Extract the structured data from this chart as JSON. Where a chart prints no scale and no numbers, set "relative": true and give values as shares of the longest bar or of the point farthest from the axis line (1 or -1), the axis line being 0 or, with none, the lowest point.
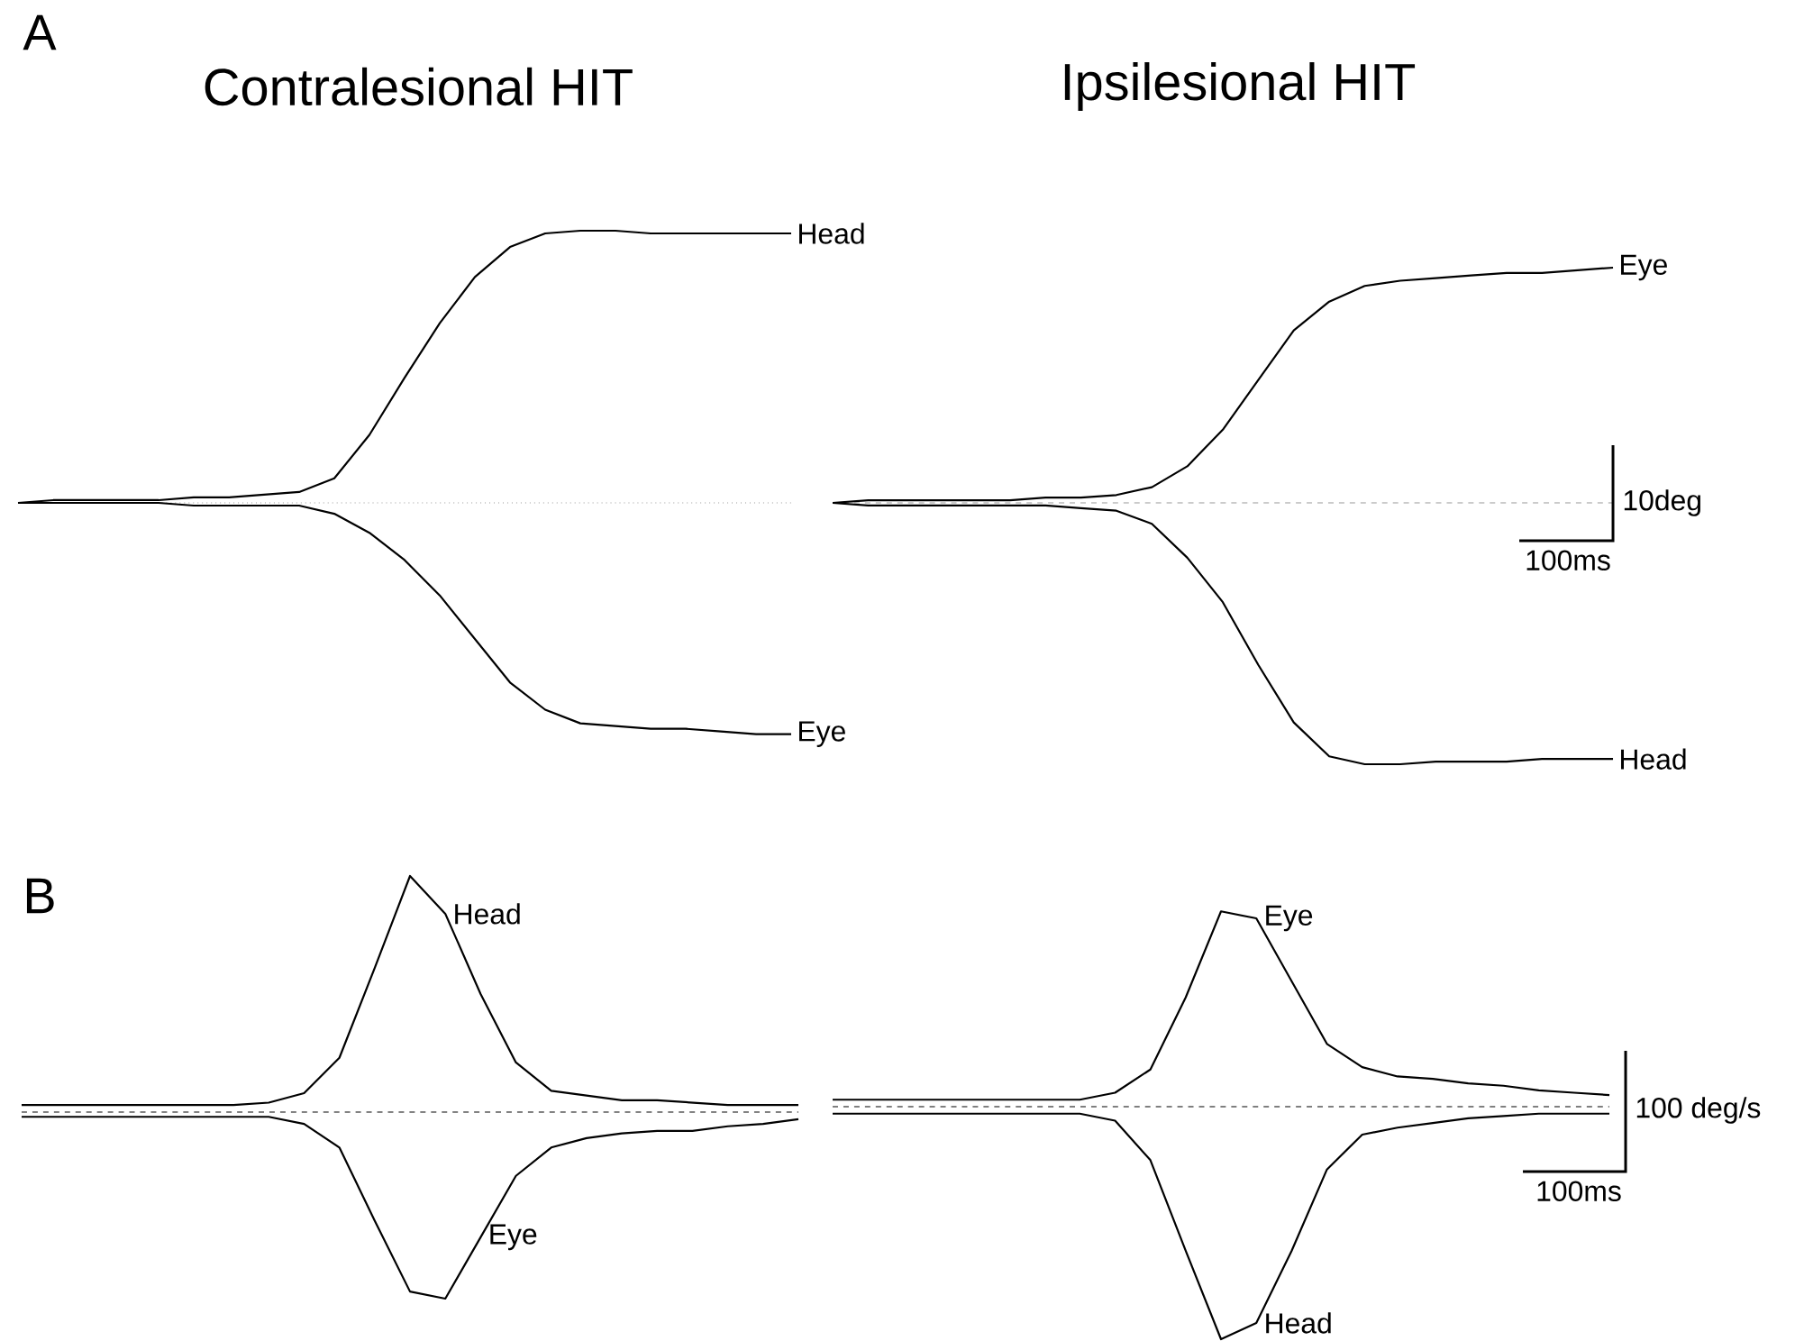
{
  "chart_data": [
    {
      "type": "line",
      "title": "Contralesional HIT",
      "relative": true,
      "annotations": [
        "A"
      ],
      "categories": [
        null,
        null,
        null,
        null,
        null,
        null,
        null,
        null,
        null,
        null,
        null,
        null,
        null,
        null,
        null,
        null,
        null,
        null,
        null,
        null,
        null,
        null,
        null
      ],
      "ref_lines": [
        {
          "axis": "y",
          "value": 0,
          "color": "#999999",
          "line_style": "dotted"
        }
      ],
      "series": [
        {
          "name": "Head",
          "color": "#000000",
          "values": [
            0,
            0.01,
            0.01,
            0.01,
            0.01,
            0.02,
            0.02,
            0.03,
            0.04,
            0.09,
            0.25,
            0.46,
            0.66,
            0.83,
            0.94,
            0.99,
            1,
            1,
            0.99,
            0.99,
            0.99,
            0.99,
            0.99
          ]
        },
        {
          "name": "Eye",
          "color": "#000000",
          "values": [
            0,
            0,
            0,
            0,
            0,
            -0.01,
            -0.01,
            -0.01,
            -0.01,
            -0.04,
            -0.11,
            -0.21,
            -0.34,
            -0.5,
            -0.66,
            -0.76,
            -0.81,
            -0.82,
            -0.83,
            -0.83,
            -0.84,
            -0.85,
            -0.85
          ]
        }
      ]
    },
    {
      "type": "line",
      "title": "Ipsilesional HIT",
      "relative": true,
      "annotations": [
        "10deg",
        "100ms"
      ],
      "categories": [
        null,
        null,
        null,
        null,
        null,
        null,
        null,
        null,
        null,
        null,
        null,
        null,
        null,
        null,
        null,
        null,
        null,
        null,
        null,
        null,
        null,
        null,
        null
      ],
      "ref_lines": [
        {
          "axis": "y",
          "value": 0,
          "color": "#999999",
          "line_style": "dashed"
        }
      ],
      "series": [
        {
          "name": "Eye",
          "color": "#000000",
          "values": [
            0,
            0.01,
            0.01,
            0.01,
            0.01,
            0.01,
            0.02,
            0.02,
            0.03,
            0.06,
            0.14,
            0.28,
            0.47,
            0.66,
            0.77,
            0.83,
            0.85,
            0.86,
            0.87,
            0.88,
            0.88,
            0.89,
            0.9
          ]
        },
        {
          "name": "Head",
          "color": "#000000",
          "values": [
            0,
            -0.01,
            -0.01,
            -0.01,
            -0.01,
            -0.01,
            -0.01,
            -0.02,
            -0.03,
            -0.08,
            -0.21,
            -0.38,
            -0.62,
            -0.84,
            -0.97,
            -1,
            -1,
            -0.99,
            -0.99,
            -0.99,
            -0.98,
            -0.98,
            -0.98
          ]
        }
      ]
    },
    {
      "type": "line",
      "relative": true,
      "annotations": [
        "B"
      ],
      "categories": [
        null,
        null,
        null,
        null,
        null,
        null,
        null,
        null,
        null,
        null,
        null,
        null,
        null,
        null,
        null,
        null,
        null,
        null,
        null,
        null,
        null,
        null,
        null
      ],
      "ref_lines": [
        {
          "axis": "y",
          "value": 0,
          "color": "#000000",
          "line_style": "dashed"
        }
      ],
      "series": [
        {
          "name": "Head",
          "color": "#000000",
          "values": [
            0.03,
            0.03,
            0.03,
            0.03,
            0.03,
            0.03,
            0.03,
            0.04,
            0.08,
            0.23,
            0.61,
            1,
            0.84,
            0.5,
            0.21,
            0.09,
            0.07,
            0.05,
            0.05,
            0.04,
            0.03,
            0.03,
            0.03
          ]
        },
        {
          "name": "Eye",
          "color": "#000000",
          "values": [
            -0.02,
            -0.02,
            -0.02,
            -0.02,
            -0.02,
            -0.02,
            -0.02,
            -0.02,
            -0.05,
            -0.15,
            -0.46,
            -0.76,
            -0.79,
            -0.53,
            -0.27,
            -0.15,
            -0.11,
            -0.09,
            -0.08,
            -0.08,
            -0.06,
            -0.05,
            -0.03
          ]
        }
      ]
    },
    {
      "type": "line",
      "relative": true,
      "annotations": [
        "100 deg/s",
        "100ms"
      ],
      "categories": [
        null,
        null,
        null,
        null,
        null,
        null,
        null,
        null,
        null,
        null,
        null,
        null,
        null,
        null,
        null,
        null,
        null,
        null,
        null,
        null,
        null,
        null,
        null
      ],
      "ref_lines": [
        {
          "axis": "y",
          "value": 0,
          "color": "#000000",
          "line_style": "dashed"
        }
      ],
      "series": [
        {
          "name": "Eye",
          "color": "#000000",
          "values": [
            0.03,
            0.03,
            0.03,
            0.03,
            0.03,
            0.03,
            0.03,
            0.03,
            0.06,
            0.16,
            0.47,
            0.84,
            0.81,
            0.54,
            0.27,
            0.17,
            0.13,
            0.12,
            0.1,
            0.09,
            0.07,
            0.06,
            0.05
          ]
        },
        {
          "name": "Head",
          "color": "#000000",
          "values": [
            -0.03,
            -0.03,
            -0.03,
            -0.03,
            -0.03,
            -0.03,
            -0.03,
            -0.03,
            -0.06,
            -0.23,
            -0.62,
            -1,
            -0.93,
            -0.62,
            -0.27,
            -0.12,
            -0.09,
            -0.07,
            -0.05,
            -0.04,
            -0.03,
            -0.03,
            -0.03
          ]
        }
      ]
    }
  ]
}
